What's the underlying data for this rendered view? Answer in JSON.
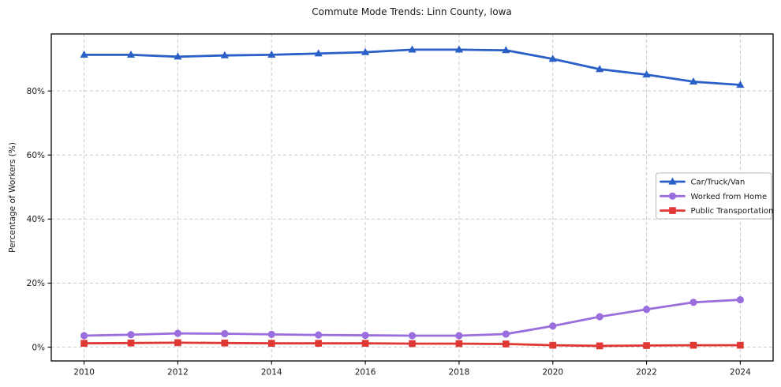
{
  "chart_data": {
    "type": "line",
    "title": "Commute Mode Trends: Linn County, Iowa",
    "xlabel": "",
    "ylabel": "Percentage of Workers (%)",
    "x": [
      2010,
      2011,
      2012,
      2013,
      2014,
      2015,
      2016,
      2017,
      2018,
      2019,
      2020,
      2021,
      2022,
      2023,
      2024
    ],
    "series": [
      {
        "name": "Car/Truck/Van",
        "color": "#2a5fc8",
        "marker": "triangle",
        "values": [
          91.3,
          91.3,
          90.7,
          91.1,
          91.3,
          91.7,
          92.1,
          92.9,
          92.9,
          92.7,
          90.0,
          86.8,
          85.1,
          82.9,
          81.9
        ]
      },
      {
        "name": "Worked from Home",
        "color": "#9a6edc",
        "marker": "circle",
        "values": [
          3.6,
          3.9,
          4.3,
          4.2,
          4.0,
          3.8,
          3.7,
          3.6,
          3.6,
          4.1,
          6.6,
          9.5,
          11.8,
          14.0,
          14.8
        ]
      },
      {
        "name": "Public Transportation",
        "color": "#df3733",
        "marker": "square",
        "values": [
          1.2,
          1.3,
          1.4,
          1.3,
          1.2,
          1.2,
          1.2,
          1.1,
          1.1,
          1.0,
          0.6,
          0.4,
          0.5,
          0.6,
          0.6
        ]
      }
    ],
    "x_ticks": [
      2010,
      2012,
      2014,
      2016,
      2018,
      2020,
      2022,
      2024
    ],
    "x_tick_labels": [
      "2010",
      "2012",
      "2014",
      "2016",
      "2018",
      "2020",
      "2022",
      "2024"
    ],
    "y_ticks": [
      0,
      20,
      40,
      60,
      80
    ],
    "y_tick_labels": [
      "0%",
      "20%",
      "40%",
      "60%",
      "80%"
    ],
    "xlim": [
      2009.3,
      2024.7
    ],
    "ylim": [
      -4.3,
      97.8
    ],
    "grid": true,
    "grid_style": "dashed",
    "grid_color": "#c9c9c9",
    "axis_color": "#000000",
    "text_color": "#1a1a1a",
    "background_color": "#ffffff",
    "legend_position": "center-right"
  }
}
